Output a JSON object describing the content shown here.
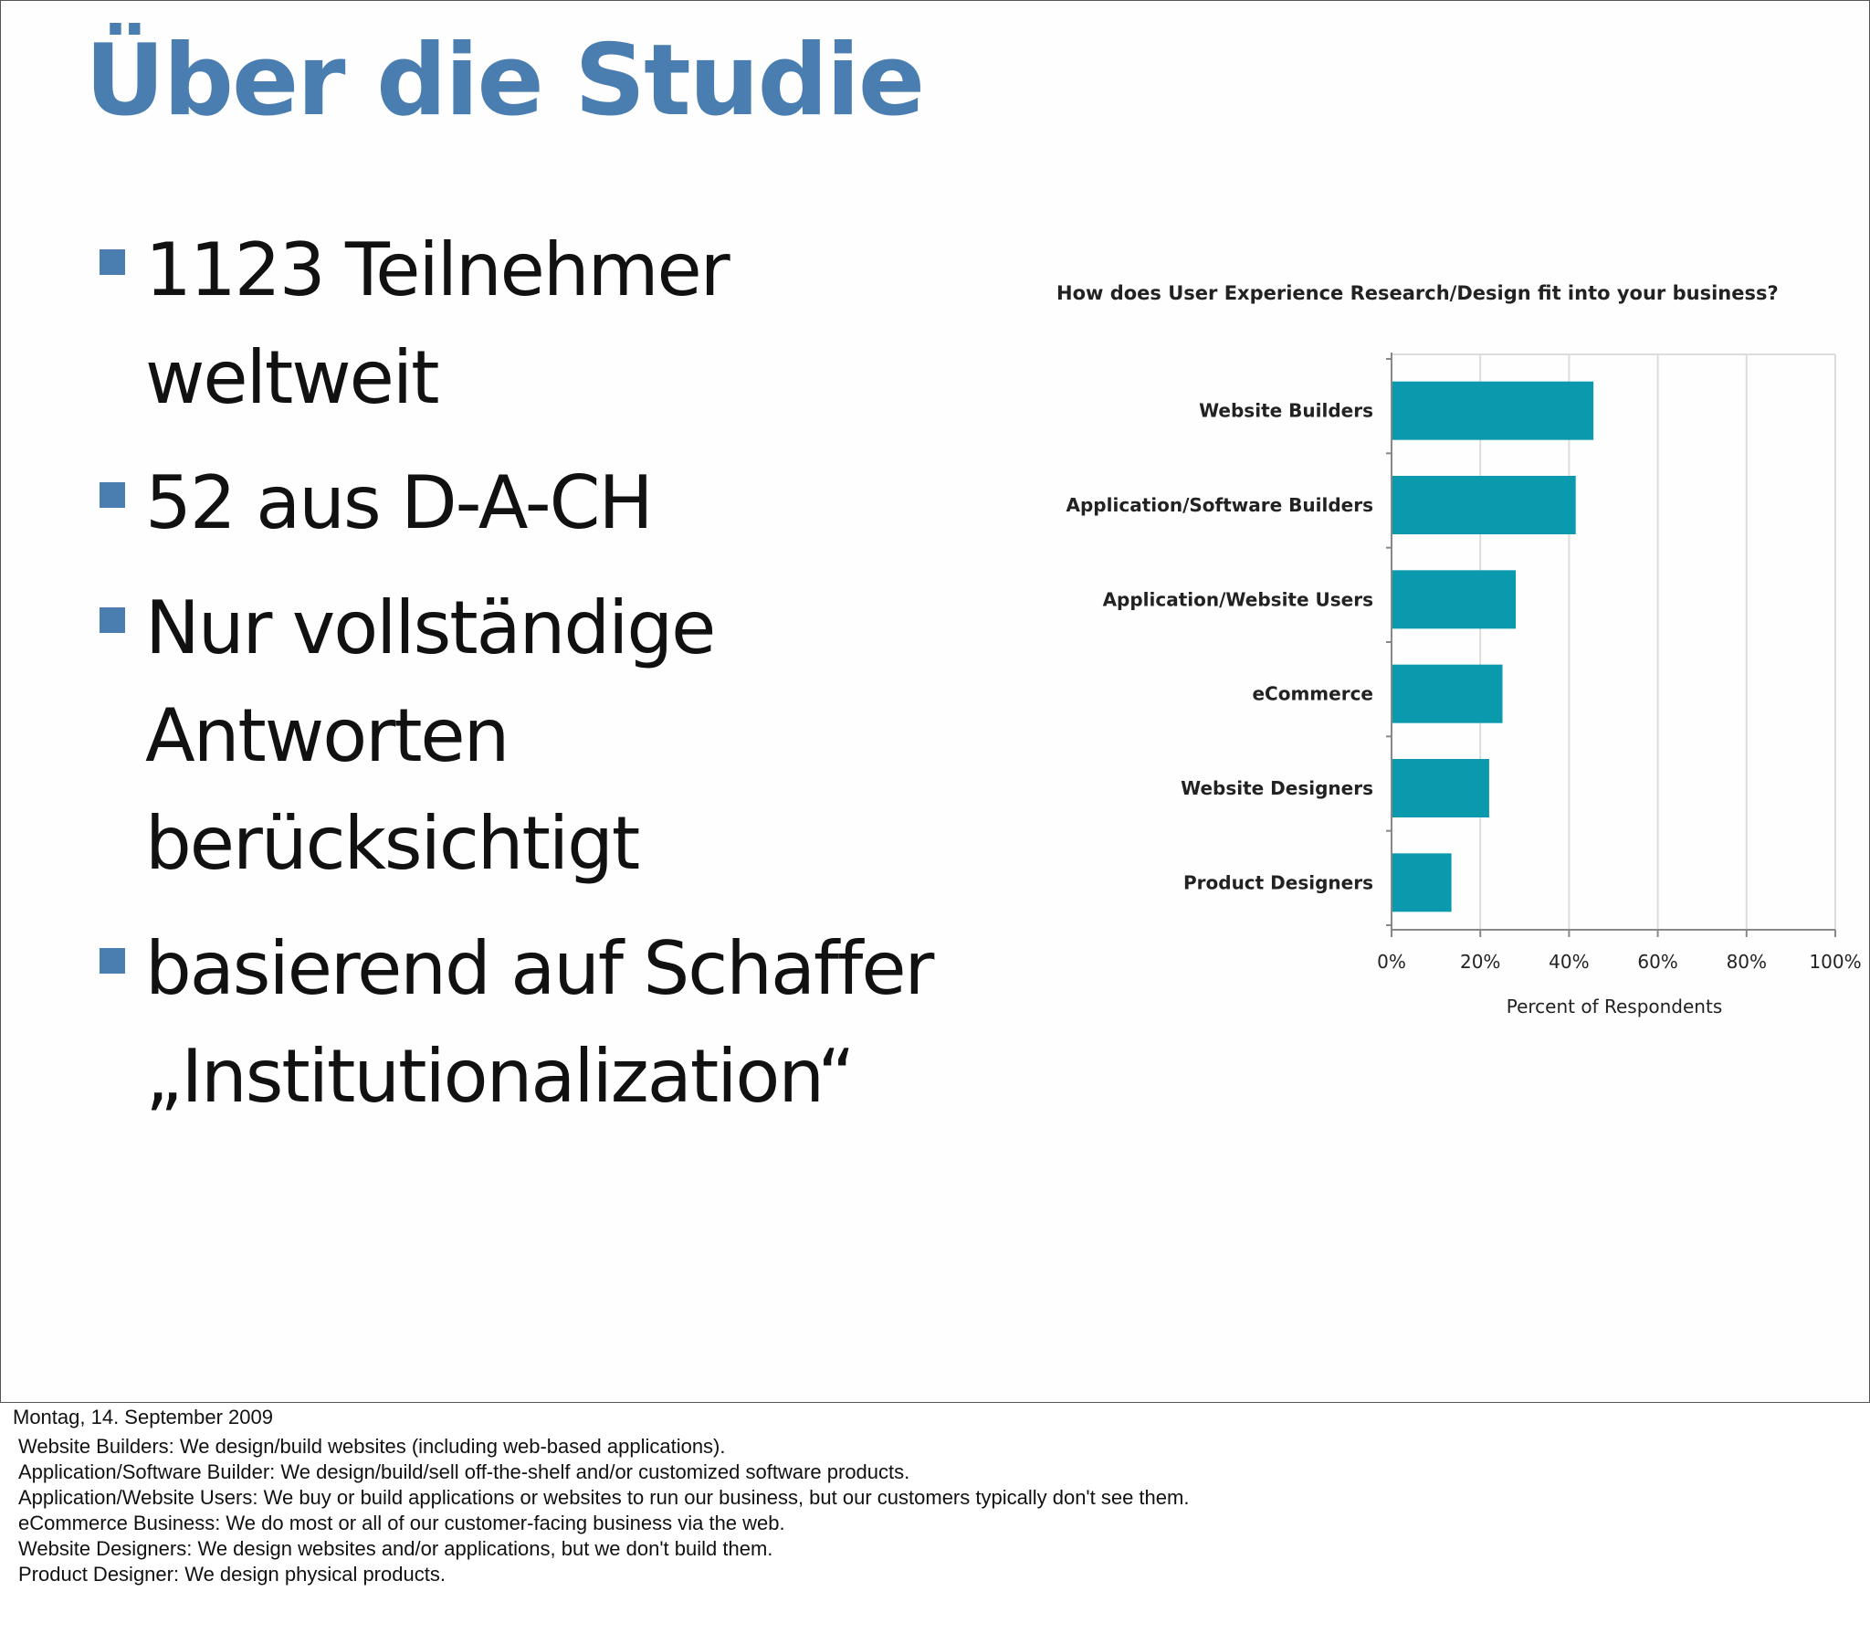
{
  "slide": {
    "title": "Über die Studie",
    "bullets": [
      "1123 Teilnehmer weltweit",
      "52 aus D-A-CH",
      "Nur vollständige Antworten berücksichtigt",
      "basierend auf Schaffer „Institutionalization“"
    ]
  },
  "colors": {
    "accent": "#4a7eb0",
    "bar": "#0b9aad",
    "grid": "#dcdcdc",
    "axis": "#888888"
  },
  "chart_data": {
    "type": "bar",
    "orientation": "horizontal",
    "title": "How does User Experience Research/Design fit into your business?",
    "xlabel": "Percent of Respondents",
    "ylabel": "",
    "categories": [
      "Website Builders",
      "Application/Software Builders",
      "Application/Website Users",
      "eCommerce",
      "Website Designers",
      "Product Designers"
    ],
    "values": [
      45.5,
      41.5,
      28,
      25,
      22,
      13.5
    ],
    "xlim": [
      0,
      100
    ],
    "ticks": [
      "0%",
      "20%",
      "40%",
      "60%",
      "80%",
      "100%"
    ],
    "tick_values": [
      0,
      20,
      40,
      60,
      80,
      100
    ],
    "grid": true,
    "legend": "none"
  },
  "notes": {
    "date": "Montag, 14. September 2009",
    "lines": [
      "Website Builders: We design/build websites (including web-based applications).",
      "Application/Software Builder: We design/build/sell off-the-shelf and/or customized software products.",
      "Application/Website Users: We buy or build applications or websites to run our business, but our customers typically don't see them.",
      "eCommerce Business: We do most or all of our customer-facing business via the web.",
      "Website Designers: We design websites and/or applications, but we don't build them.",
      "Product Designer: We design physical products."
    ]
  }
}
